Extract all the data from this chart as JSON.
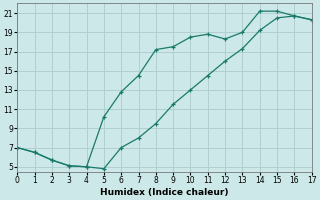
{
  "xlabel": "Humidex (Indice chaleur)",
  "bg_color": "#cce8e8",
  "grid_major_color": "#b0d0d0",
  "grid_minor_color": "#daeaea",
  "line_color": "#1a7a6a",
  "upper_x": [
    0,
    1,
    2,
    3,
    4,
    5,
    6,
    7,
    8,
    9,
    10,
    11,
    12,
    13,
    14,
    15,
    16,
    17
  ],
  "upper_y": [
    7.0,
    6.5,
    5.7,
    5.1,
    5.0,
    10.2,
    12.8,
    14.5,
    17.2,
    17.5,
    18.5,
    18.8,
    18.3,
    19.0,
    21.2,
    21.2,
    20.7,
    20.3
  ],
  "lower_x": [
    0,
    1,
    2,
    3,
    4,
    5,
    6,
    7,
    8,
    9,
    10,
    11,
    12,
    13,
    14,
    15,
    16,
    17
  ],
  "lower_y": [
    7.0,
    6.5,
    5.7,
    5.1,
    5.0,
    4.8,
    7.0,
    8.0,
    9.5,
    11.5,
    13.0,
    14.5,
    16.0,
    17.3,
    19.2,
    20.5,
    20.7,
    20.3
  ],
  "xlim": [
    0,
    17
  ],
  "ylim": [
    4.5,
    22
  ],
  "xticks": [
    0,
    1,
    2,
    3,
    4,
    5,
    6,
    7,
    8,
    9,
    10,
    11,
    12,
    13,
    14,
    15,
    16,
    17
  ],
  "yticks": [
    5,
    7,
    9,
    11,
    13,
    15,
    17,
    19,
    21
  ]
}
